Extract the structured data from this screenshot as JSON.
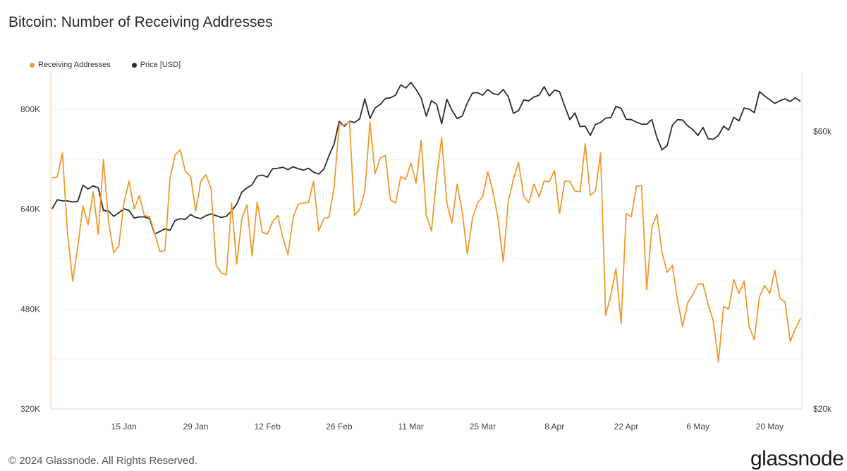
{
  "title": "Bitcoin: Number of Receiving Addresses",
  "footer": "© 2024 Glassnode. All Rights Reserved.",
  "logo": "glassnode",
  "colors": {
    "addresses": "#f09a2d",
    "price": "#2b2b2b",
    "grid": "#eeeeee",
    "axis": "#f3c98a"
  },
  "chart_data": {
    "type": "line",
    "x_start_day": "2024-01-01",
    "x_ticks": [
      {
        "label": "15 Jan",
        "day": 14
      },
      {
        "label": "29 Jan",
        "day": 28
      },
      {
        "label": "12 Feb",
        "day": 42
      },
      {
        "label": "26 Feb",
        "day": 56
      },
      {
        "label": "11 Mar",
        "day": 70
      },
      {
        "label": "25 Mar",
        "day": 84
      },
      {
        "label": "8 Apr",
        "day": 98
      },
      {
        "label": "22 Apr",
        "day": 112
      },
      {
        "label": "6 May",
        "day": 126
      },
      {
        "label": "20 May",
        "day": 140
      }
    ],
    "y_left": {
      "min": 320000,
      "max": 860000,
      "ticks": [
        {
          "label": "320K",
          "value": 320000
        },
        {
          "label": "480K",
          "value": 480000
        },
        {
          "label": "640K",
          "value": 640000
        },
        {
          "label": "800K",
          "value": 800000
        }
      ]
    },
    "y_right": {
      "scale": "log",
      "min": 20000,
      "max": 76000,
      "ticks": [
        {
          "label": "$20k",
          "value": 20000
        },
        {
          "label": "$60k",
          "value": 60000
        }
      ]
    },
    "legend": "top-left",
    "series": [
      {
        "name": "Receiving Addresses",
        "axis": "left",
        "values": [
          690000,
          692000,
          730000,
          600000,
          525000,
          580000,
          645000,
          615000,
          668000,
          600000,
          720000,
          620000,
          570000,
          582000,
          650000,
          685000,
          640000,
          662000,
          630000,
          628000,
          602000,
          572000,
          574000,
          690000,
          727000,
          735000,
          700000,
          693000,
          637000,
          685000,
          695000,
          673000,
          550000,
          538000,
          535000,
          650000,
          552000,
          625000,
          647000,
          565000,
          652000,
          603000,
          600000,
          620000,
          630000,
          595000,
          567000,
          627000,
          648000,
          650000,
          651000,
          685000,
          605000,
          625000,
          627000,
          675000,
          775000,
          775000,
          780000,
          630000,
          640000,
          668000,
          780000,
          697000,
          722000,
          726000,
          655000,
          650000,
          692000,
          688000,
          714000,
          682000,
          751000,
          630000,
          605000,
          690000,
          755000,
          650000,
          618000,
          680000,
          636000,
          568000,
          625000,
          650000,
          660000,
          700000,
          668000,
          625000,
          556000,
          653000,
          688000,
          715000,
          661000,
          650000,
          680000,
          660000,
          685000,
          684000,
          702000,
          633000,
          685000,
          685000,
          669000,
          668000,
          745000,
          662000,
          669000,
          730000,
          470000,
          502000,
          545000,
          457000,
          633000,
          628000,
          677000,
          678000,
          511000,
          611000,
          632000,
          570000,
          539000,
          550000,
          495000,
          452000,
          490000,
          503000,
          520000,
          520000,
          487000,
          461000,
          396000,
          484000,
          480000,
          527000,
          505000,
          525000,
          451000,
          431000,
          500000,
          518000,
          505000,
          542000,
          497000,
          491000,
          428000,
          448000,
          465000
        ]
      },
      {
        "name": "Price [USD]",
        "axis": "right",
        "values": [
          44200,
          45800,
          45600,
          45600,
          45400,
          45500,
          48500,
          47800,
          48400,
          48000,
          43900,
          43800,
          42900,
          43500,
          44200,
          43900,
          42600,
          42800,
          42800,
          42500,
          40000,
          40400,
          40800,
          40600,
          42200,
          42500,
          42400,
          43200,
          42700,
          42500,
          43000,
          43300,
          43000,
          42700,
          42900,
          43800,
          45000,
          47200,
          48000,
          48600,
          50300,
          50500,
          50100,
          51800,
          51900,
          52100,
          51600,
          52200,
          51800,
          51500,
          51900,
          51100,
          50700,
          51700,
          54500,
          57100,
          62500,
          61300,
          62500,
          62200,
          63100,
          68300,
          63200,
          65900,
          66800,
          68400,
          68600,
          69300,
          72200,
          71300,
          72900,
          70900,
          68500,
          63800,
          67800,
          66900,
          61900,
          68200,
          65300,
          63200,
          63800,
          67200,
          69900,
          70000,
          69300,
          70900,
          69800,
          69400,
          70900,
          68900,
          64500,
          65200,
          68000,
          67800,
          68800,
          69300,
          71700,
          69100,
          70700,
          70300,
          66400,
          62900,
          64600,
          61200,
          61300,
          59100,
          61700,
          62200,
          63300,
          63400,
          66300,
          65800,
          63000,
          62900,
          62300,
          61800,
          61800,
          62900,
          58600,
          55800,
          56800,
          61500,
          62900,
          62800,
          61400,
          60500,
          59100,
          61000,
          58300,
          58200,
          59100,
          61300,
          60400,
          63500,
          62600,
          65900,
          65600,
          64700,
          70300,
          69100,
          68100,
          67100,
          67800,
          68300,
          67600,
          68600,
          67600
        ]
      }
    ]
  }
}
